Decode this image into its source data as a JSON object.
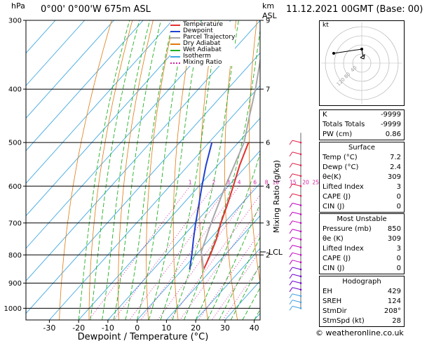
{
  "header": {
    "location": "0°00' 0°00'W 675m ASL",
    "datetime": "11.12.2021 00GMT (Base: 00)",
    "pressure_unit": "hPa",
    "height_unit_1": "km",
    "height_unit_2": "ASL"
  },
  "legend": [
    {
      "label": "Temperature",
      "color": "#e53030",
      "style": "solid"
    },
    {
      "label": "Dewpoint",
      "color": "#2040d0",
      "style": "solid"
    },
    {
      "label": "Parcel Trajectory",
      "color": "#a8a8a8",
      "style": "solid"
    },
    {
      "label": "Dry Adiabat",
      "color": "#e07a10",
      "style": "solid"
    },
    {
      "label": "Wet Adiabat",
      "color": "#20b020",
      "style": "solid"
    },
    {
      "label": "Isotherm",
      "color": "#40a8e0",
      "style": "solid"
    },
    {
      "label": "Mixing Ratio",
      "color": "#d020a0",
      "style": "dotted"
    }
  ],
  "chart_data": {
    "type": "line",
    "title": "",
    "xlabel": "Dewpoint / Temperature (°C)",
    "ylabel": "hPa",
    "xlim": [
      -38,
      42
    ],
    "x_ticks": [
      "-30",
      "-20",
      "-10",
      "0",
      "10",
      "20",
      "30",
      "40"
    ],
    "y_ticks": [
      "300",
      "400",
      "500",
      "600",
      "700",
      "800",
      "900",
      "1000"
    ],
    "y_scale": "log",
    "skew": "skew-T",
    "km_ticks": [
      {
        "p": 300,
        "label": "9"
      },
      {
        "p": 400,
        "label": "7"
      },
      {
        "p": 500,
        "label": "6"
      },
      {
        "p": 600,
        "label": "4"
      },
      {
        "p": 700,
        "label": "3"
      },
      {
        "p": 800,
        "label": "2"
      }
    ],
    "lcl": {
      "p": 790,
      "label": "LCL"
    },
    "mixing_ratio_axis_label": "Mixing Ratio (g/kg)",
    "mixing_ratio_labels": [
      "1",
      "2",
      "3",
      "4",
      "6",
      "8",
      "10",
      "15",
      "20",
      "25"
    ],
    "series": [
      {
        "name": "Temperature",
        "color": "#e53030",
        "p": [
          850,
          800,
          750,
          700,
          650,
          600,
          550,
          500
        ],
        "t": [
          7.2,
          5,
          2.3,
          -1.2,
          -4.5,
          -8.3,
          -12.5,
          -16.5
        ]
      },
      {
        "name": "Dewpoint",
        "color": "#2040d0",
        "p": [
          850,
          800,
          750,
          700,
          650,
          600,
          550,
          500
        ],
        "t": [
          2.4,
          -1.3,
          -5.5,
          -9.8,
          -14.2,
          -19.0,
          -24.0,
          -29.0
        ]
      },
      {
        "name": "Parcel Trajectory",
        "color": "#a8a8a8",
        "p": [
          850,
          790,
          700,
          600,
          500,
          450,
          400,
          350,
          300
        ],
        "t": [
          7.2,
          1.0,
          -4.5,
          -11.0,
          -18.0,
          -24.0,
          -30.5,
          -38.5,
          -47.0
        ]
      }
    ]
  },
  "indices": {
    "rows": [
      {
        "label": "K",
        "value": "-9999"
      },
      {
        "label": "Totals Totals",
        "value": "-9999"
      },
      {
        "label": "PW (cm)",
        "value": "0.86"
      }
    ]
  },
  "surface": {
    "title": "Surface",
    "rows": [
      {
        "label": "Temp (°C)",
        "value": "7.2"
      },
      {
        "label": "Dewp (°C)",
        "value": "2.4"
      },
      {
        "label": "θe(K)",
        "value": "309"
      },
      {
        "label": "Lifted Index",
        "value": "3"
      },
      {
        "label": "CAPE (J)",
        "value": "0"
      },
      {
        "label": "CIN (J)",
        "value": "0"
      }
    ]
  },
  "most_unstable": {
    "title": "Most Unstable",
    "rows": [
      {
        "label": "Pressure (mb)",
        "value": "850"
      },
      {
        "label": "θe (K)",
        "value": "309"
      },
      {
        "label": "Lifted Index",
        "value": "3"
      },
      {
        "label": "CAPE (J)",
        "value": "0"
      },
      {
        "label": "CIN (J)",
        "value": "0"
      }
    ]
  },
  "hodograph_table": {
    "title": "Hodograph",
    "rows": [
      {
        "label": "EH",
        "value": "429"
      },
      {
        "label": "SREH",
        "value": "124"
      },
      {
        "label": "StmDir",
        "value": "208°"
      },
      {
        "label": "StmSpd (kt)",
        "value": "28"
      }
    ]
  },
  "hodograph": {
    "unit_label": "kt",
    "ring_labels": [
      "40",
      "80",
      "120"
    ]
  },
  "footer": "© weatheronline.co.uk"
}
